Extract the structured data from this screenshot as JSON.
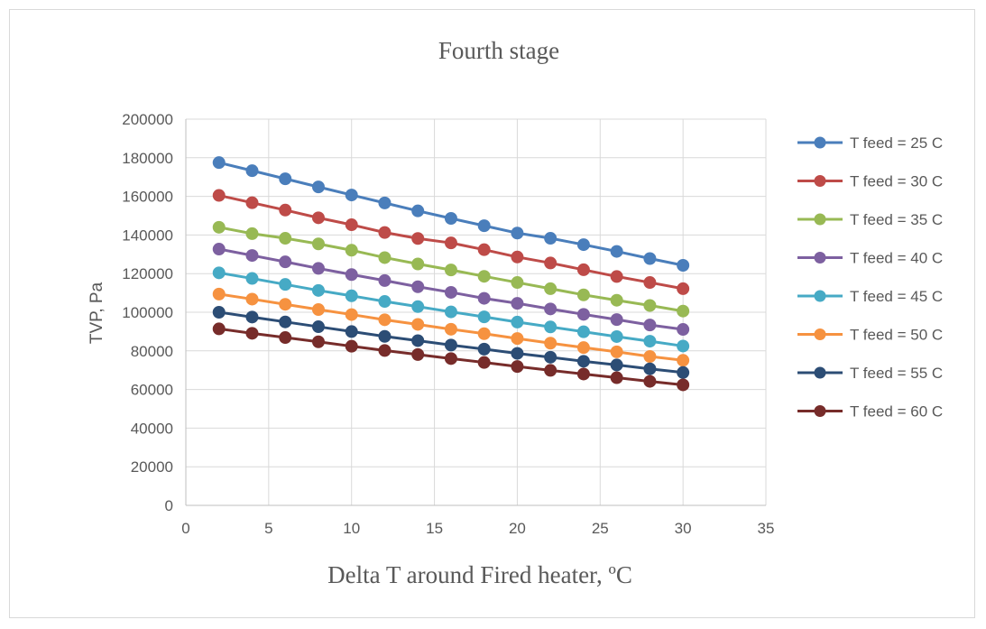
{
  "chart_data": {
    "type": "line",
    "title": "Fourth stage",
    "xlabel": "Delta T around Fired heater, ºC",
    "ylabel": "TVP, Pa",
    "xlim": [
      0,
      35
    ],
    "ylim": [
      0,
      200000
    ],
    "x_ticks": [
      0,
      5,
      10,
      15,
      20,
      25,
      30,
      35
    ],
    "y_ticks": [
      0,
      20000,
      40000,
      60000,
      80000,
      100000,
      120000,
      140000,
      160000,
      180000,
      200000
    ],
    "grid": true,
    "legend_position": "right",
    "x": [
      2,
      4,
      6,
      8,
      10,
      12,
      14,
      16,
      18,
      20,
      22,
      24,
      26,
      28,
      30
    ],
    "series": [
      {
        "name": "T feed = 25 C",
        "color": "#4a7ebb",
        "values": [
          177500,
          173300,
          169100,
          164900,
          160700,
          156600,
          152500,
          148600,
          144800,
          141000,
          138300,
          135000,
          131500,
          127800,
          124300
        ]
      },
      {
        "name": "T feed = 30 C",
        "color": "#be4b48",
        "values": [
          160500,
          156700,
          152900,
          148900,
          145300,
          141300,
          138200,
          135900,
          132400,
          128600,
          125500,
          122000,
          118500,
          115400,
          112200
        ]
      },
      {
        "name": "T feed = 35 C",
        "color": "#98b954",
        "values": [
          144000,
          140700,
          138300,
          135400,
          132100,
          128300,
          125000,
          121900,
          118600,
          115400,
          112200,
          109000,
          106200,
          103500,
          100600
        ]
      },
      {
        "name": "T feed = 40 C",
        "color": "#7d60a0",
        "values": [
          132700,
          129400,
          126100,
          122700,
          119500,
          116400,
          113200,
          110300,
          107200,
          104600,
          101700,
          98900,
          96200,
          93400,
          91100
        ]
      },
      {
        "name": "T feed = 45 C",
        "color": "#46aac5",
        "values": [
          120400,
          117500,
          114400,
          111300,
          108500,
          105600,
          102900,
          100200,
          97600,
          94900,
          92400,
          89900,
          87400,
          85000,
          82500
        ]
      },
      {
        "name": "T feed = 50 C",
        "color": "#f69240",
        "values": [
          109400,
          106800,
          104100,
          101400,
          98800,
          96100,
          93700,
          91200,
          88900,
          86400,
          84000,
          81700,
          79500,
          77100,
          75100
        ]
      },
      {
        "name": "T feed = 55 C",
        "color": "#2c4d75",
        "values": [
          100000,
          97500,
          95000,
          92500,
          90000,
          87500,
          85300,
          83000,
          80900,
          78700,
          76700,
          74600,
          72700,
          70700,
          68800
        ]
      },
      {
        "name": "T feed = 60 C",
        "color": "#772c2a",
        "values": [
          91400,
          89100,
          86900,
          84700,
          82400,
          80200,
          78100,
          76000,
          74000,
          71900,
          69900,
          68000,
          66100,
          64200,
          62400
        ]
      }
    ]
  }
}
